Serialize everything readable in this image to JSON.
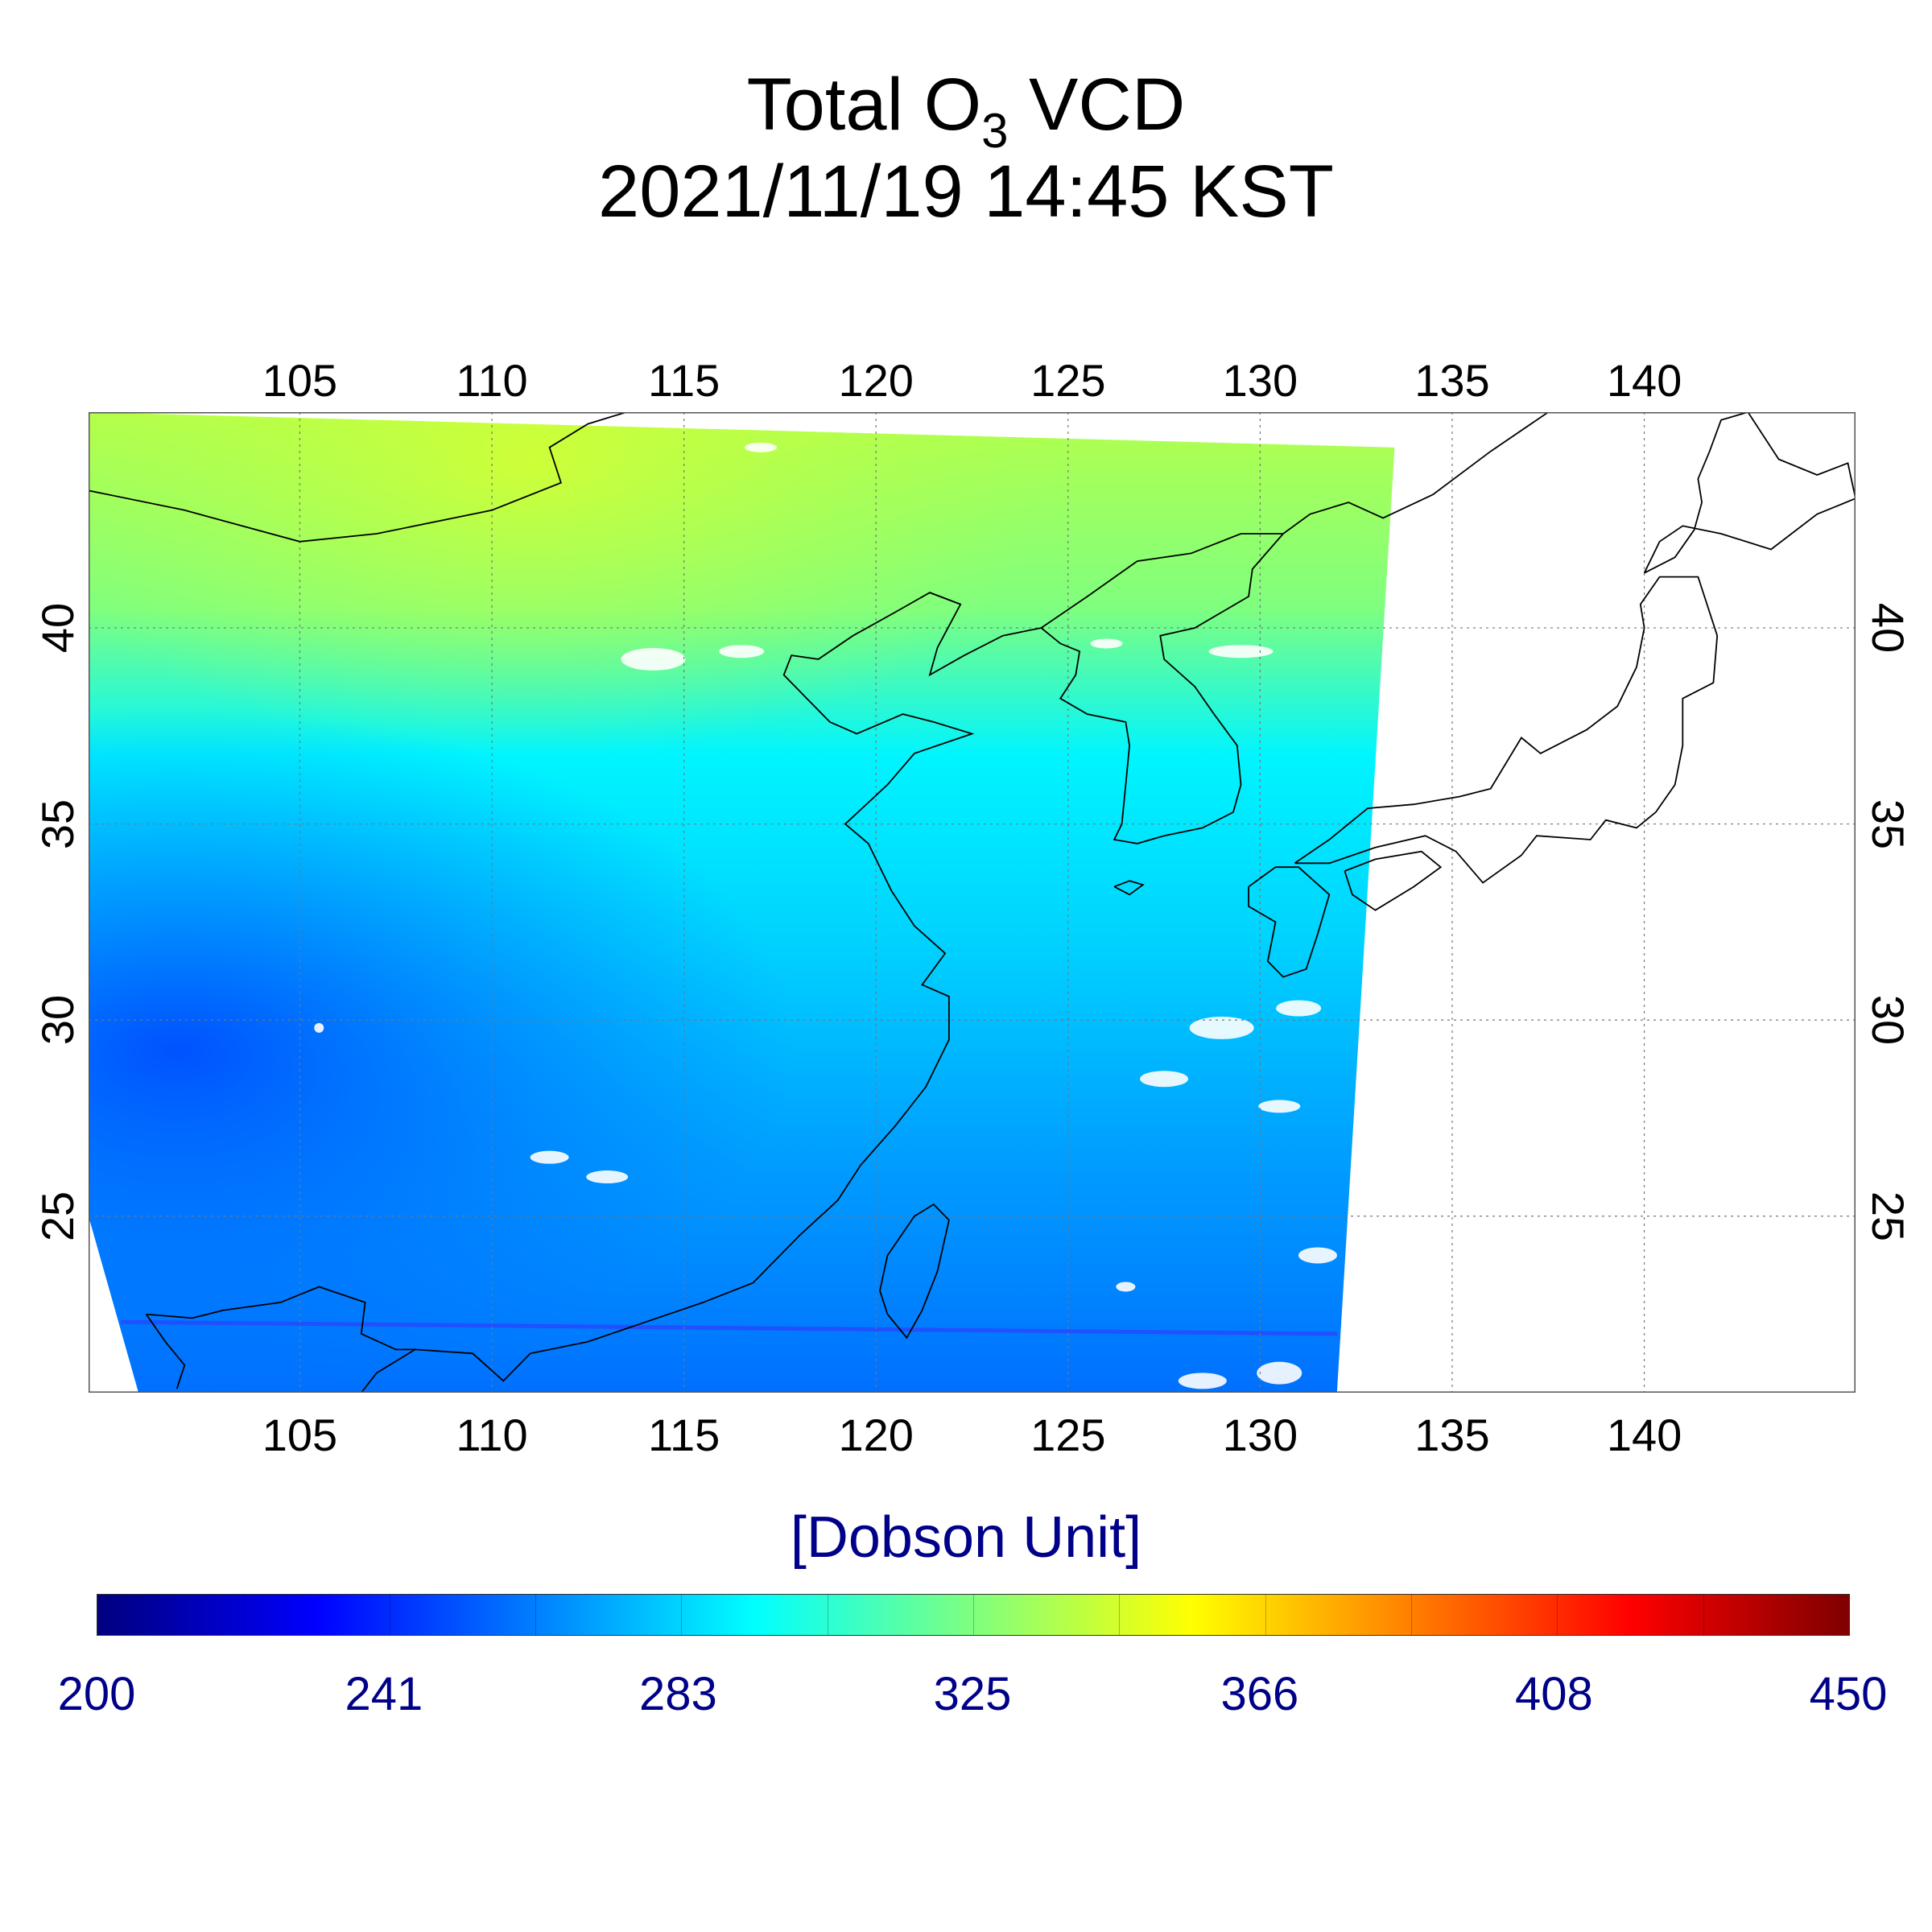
{
  "title": {
    "line1_prefix": "Total O",
    "line1_sub": "3",
    "line1_suffix": " VCD",
    "line2": "2021/11/19 14:45 KST"
  },
  "map": {
    "lon_range": [
      99.5,
      145.5
    ],
    "lat_range": [
      20.5,
      45.5
    ],
    "lon_ticks": [
      "105",
      "110",
      "115",
      "120",
      "125",
      "130",
      "135",
      "140"
    ],
    "lat_ticks": [
      "25",
      "30",
      "35",
      "40"
    ],
    "grid": "dotted",
    "swath_edge_east_lon": [
      132.0,
      133.5
    ],
    "swath_edge_west_lon": [
      99.5,
      100.8
    ]
  },
  "colorbar": {
    "label": "[Dobson Unit]",
    "min": 200,
    "max": 450,
    "ticks": [
      "200",
      "241",
      "283",
      "325",
      "366",
      "408",
      "450"
    ],
    "colormap": "jet",
    "colors": [
      "#00007f",
      "#0000ff",
      "#007fff",
      "#00ffff",
      "#7fff7f",
      "#ffff00",
      "#ff7f00",
      "#ff0000",
      "#7f0000"
    ]
  },
  "chart_data": {
    "type": "heatmap",
    "title": "Total O3 VCD 2021/11/19 14:45 KST",
    "xlabel": "",
    "ylabel": "",
    "xlim": [
      99.5,
      145.5
    ],
    "ylim": [
      20.5,
      45.5
    ],
    "value_unit": "Dobson Unit",
    "value_range": [
      200,
      450
    ],
    "approx_values_by_region": [
      {
        "region": "north (42-45N)",
        "value": 340
      },
      {
        "region": "central (35-40N)",
        "value": 310
      },
      {
        "region": "east China (30-35N)",
        "value": 290
      },
      {
        "region": "south China (22-28N)",
        "value": 265
      },
      {
        "region": "southwest (25-30N, 100-105E)",
        "value": 245
      }
    ]
  }
}
